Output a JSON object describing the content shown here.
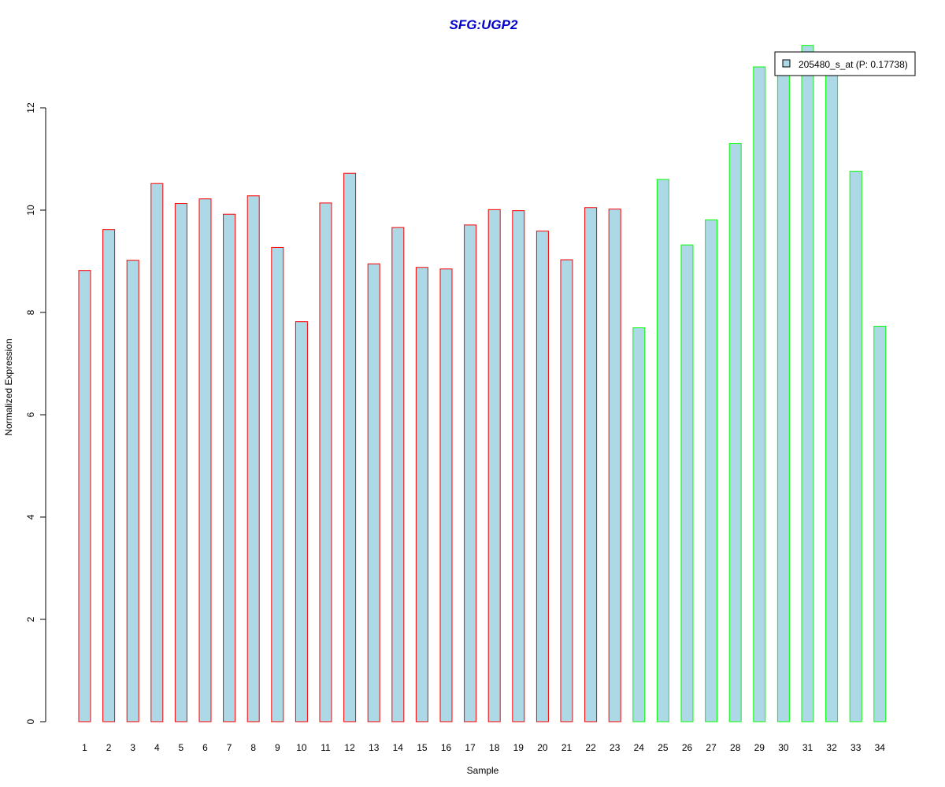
{
  "colors": {
    "title": "#0000cc",
    "bar_fill": "#add8e6",
    "group1_border": "#ff0000",
    "group2_border": "#00ff00",
    "axis": "#000000"
  },
  "chart_data": {
    "type": "bar",
    "title": "SFG:UGP2",
    "xlabel": "Sample",
    "ylabel": "Normalized Expression",
    "ylim": [
      0,
      13
    ],
    "yticks": [
      0,
      2,
      4,
      6,
      8,
      10,
      12
    ],
    "grid": false,
    "legend": {
      "position": "top-right",
      "entries": [
        "205480_s_at (P: 0.17738)"
      ]
    },
    "categories": [
      "1",
      "2",
      "3",
      "4",
      "5",
      "6",
      "7",
      "8",
      "9",
      "10",
      "11",
      "12",
      "13",
      "14",
      "15",
      "16",
      "17",
      "18",
      "19",
      "20",
      "21",
      "22",
      "23",
      "24",
      "25",
      "26",
      "27",
      "28",
      "29",
      "30",
      "31",
      "32",
      "33",
      "34"
    ],
    "values": [
      8.82,
      9.62,
      9.02,
      10.52,
      10.13,
      10.22,
      9.92,
      10.28,
      9.27,
      7.82,
      10.14,
      10.72,
      8.95,
      9.66,
      8.88,
      8.85,
      9.71,
      10.01,
      9.99,
      9.59,
      9.03,
      10.05,
      10.02,
      7.7,
      10.6,
      9.32,
      9.81,
      11.3,
      12.8,
      12.8,
      13.22,
      12.7,
      10.76,
      7.73
    ],
    "groups": [
      1,
      1,
      1,
      1,
      1,
      1,
      1,
      1,
      1,
      1,
      1,
      1,
      1,
      1,
      1,
      1,
      1,
      1,
      1,
      1,
      1,
      1,
      1,
      2,
      2,
      2,
      2,
      2,
      2,
      2,
      2,
      2,
      2,
      2
    ]
  }
}
